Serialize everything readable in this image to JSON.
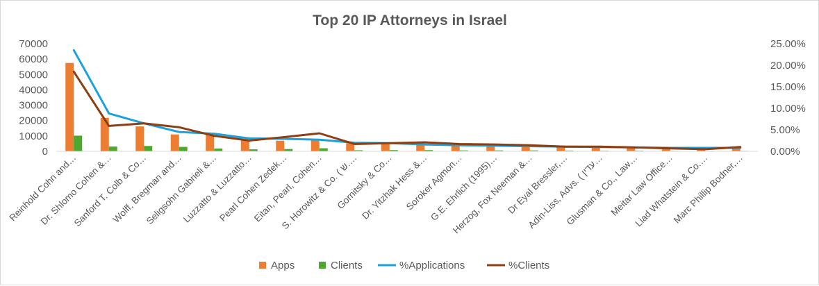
{
  "chart_data": {
    "type": "bar",
    "title": "Top 20 IP Attorneys in Israel",
    "categories": [
      "Reinhold Cohn and…",
      "Dr. Shlomo Cohen &…",
      "Sanford T. Colb & Co…",
      "Wolff, Bregman and…",
      "Seligsohn Gabrieli &…",
      "Luzzatto & Luzzatto…",
      "Pearl Cohen Zedek…",
      "Eitan, Pearl, Cohen…",
      "S. Horowitz & Co. ( ש.…",
      "Gornitsky & Co…",
      "Dr. Yitzhak Hess &…",
      "Soroker Agmon…",
      "G.E. Ehrlich (1995)…",
      "Herzog, Fox Neeman &…",
      "Dr Eyal Bressler,…",
      "Adin-Liss, Advs. ( עדין…",
      "Glusman & Co., Law…",
      "Meitar Law Office…",
      "Liad Whatstein & Co.…",
      "Marc Phillip Bodner,…"
    ],
    "series": [
      {
        "name": "Apps",
        "type": "bar",
        "axis": "left",
        "color": "#ed7d31",
        "values": [
          57500,
          21800,
          16200,
          11000,
          10800,
          7400,
          6900,
          8000,
          5300,
          4800,
          4400,
          3700,
          3400,
          3300,
          2700,
          2500,
          2300,
          1900,
          1500,
          2200
        ]
      },
      {
        "name": "Clients",
        "type": "bar",
        "axis": "left",
        "color": "#4ea72e",
        "values": [
          10200,
          3100,
          3500,
          2900,
          1800,
          1300,
          1500,
          2000,
          700,
          800,
          800,
          600,
          600,
          600,
          500,
          400,
          400,
          300,
          300,
          300
        ]
      },
      {
        "name": "%Applications",
        "type": "line",
        "axis": "right",
        "color": "#1ba1dd",
        "values": [
          23.5,
          8.8,
          6.5,
          4.5,
          4.1,
          3.0,
          2.9,
          2.7,
          2.0,
          1.9,
          1.6,
          1.4,
          1.3,
          1.2,
          1.1,
          1.0,
          0.9,
          0.8,
          0.8,
          0.8
        ]
      },
      {
        "name": "%Clients",
        "type": "line",
        "axis": "right",
        "color": "#8e3e10",
        "values": [
          18.5,
          5.9,
          6.5,
          5.6,
          3.6,
          2.5,
          3.3,
          4.2,
          1.7,
          1.9,
          2.1,
          1.7,
          1.6,
          1.4,
          1.1,
          1.1,
          0.9,
          0.7,
          0.5,
          1.0
        ]
      }
    ],
    "y_left": {
      "min": 0,
      "max": 70000,
      "ticks": [
        "0",
        "10000",
        "20000",
        "30000",
        "40000",
        "50000",
        "60000",
        "70000"
      ]
    },
    "y_right": {
      "min": 0,
      "max": 25,
      "ticks": [
        "0.00%",
        "5.00%",
        "10.00%",
        "15.00%",
        "20.00%",
        "25.00%"
      ]
    },
    "grid": false,
    "legend_position": "bottom",
    "legend": [
      "Apps",
      "Clients",
      "%Applications",
      "%Clients"
    ]
  }
}
